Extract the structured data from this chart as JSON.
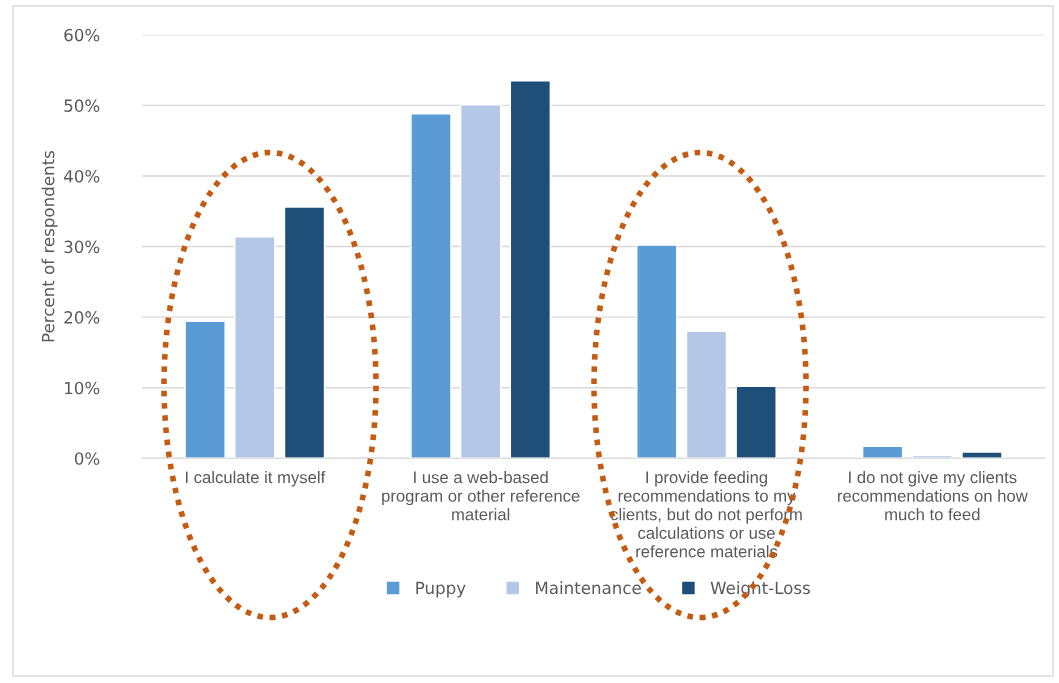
{
  "chart_data": {
    "type": "bar",
    "ylabel": "Percent of respondents",
    "categories": [
      "I calculate it myself",
      "I use a web-based program or other reference material",
      "I provide feeding recommendations to my clients, but do not perform calculations or use reference materials",
      "I do not give my clients recommendations on how much to feed"
    ],
    "series": [
      {
        "name": "Puppy",
        "color": "#5b9bd5",
        "values": [
          19.4,
          48.8,
          30.2,
          1.7
        ]
      },
      {
        "name": "Maintenance",
        "color": "#b4c7e7",
        "values": [
          31.4,
          50.1,
          18.0,
          0.4
        ]
      },
      {
        "name": "Weight-Loss",
        "color": "#1f4e79",
        "values": [
          35.6,
          53.5,
          10.2,
          0.9
        ]
      }
    ],
    "ylim": [
      0,
      60
    ],
    "yticks": [
      {
        "value": 0,
        "label": "0%"
      },
      {
        "value": 10,
        "label": "10%"
      },
      {
        "value": 20,
        "label": "20%"
      },
      {
        "value": 30,
        "label": "30%"
      },
      {
        "value": 40,
        "label": "40%"
      },
      {
        "value": 50,
        "label": "50%"
      },
      {
        "value": 60,
        "label": "60%"
      }
    ],
    "grid": "y",
    "legend": "bottom"
  }
}
